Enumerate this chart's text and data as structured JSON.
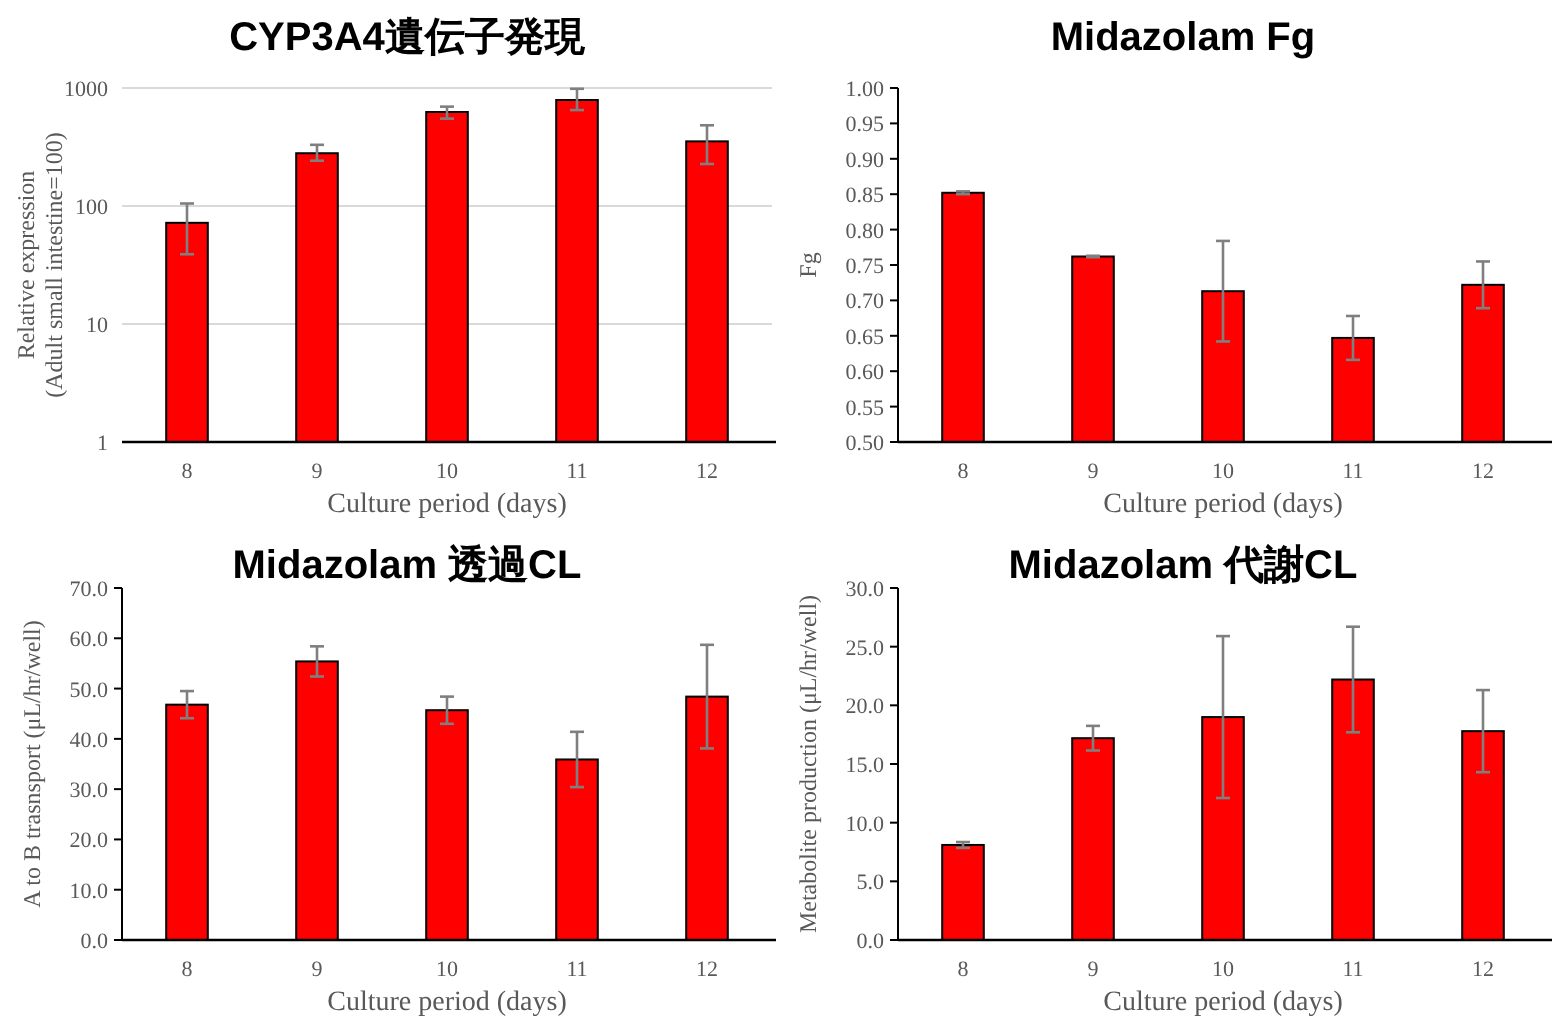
{
  "chart_data": [
    {
      "type": "bar",
      "title": "CYP3A4遺伝子発現",
      "xlabel": "Culture period (days)",
      "ylabel": "Relative expression\n(Adult small intestine=100)",
      "categories": [
        "8",
        "9",
        "10",
        "11",
        "12"
      ],
      "values": [
        72,
        280,
        626,
        791,
        353
      ],
      "errors": [
        [
          39,
          105
        ],
        [
          242,
          330
        ],
        [
          550,
          695
        ],
        [
          650,
          985
        ],
        [
          227,
          483
        ]
      ],
      "color": "#ff0000",
      "log": "y",
      "ylim": [
        1,
        1000
      ],
      "yticks": [
        1,
        10,
        100,
        1000
      ],
      "grid": "y"
    },
    {
      "type": "bar",
      "title": "Midazolam Fg",
      "xlabel": "Culture period (days)",
      "ylabel": "Fg",
      "categories": [
        "8",
        "9",
        "10",
        "11",
        "12"
      ],
      "values": [
        0.852,
        0.762,
        0.713,
        0.647,
        0.722
      ],
      "errors": [
        0.002,
        0.001,
        0.071,
        0.031,
        0.033
      ],
      "color": "#ff0000",
      "ylim": [
        0.5,
        1.0
      ],
      "yticks": [
        {
          "value": 0.5,
          "label": "0.50"
        },
        {
          "value": 0.55,
          "label": "0.55"
        },
        {
          "value": 0.6,
          "label": "0.60"
        },
        {
          "value": 0.65,
          "label": "0.65"
        },
        {
          "value": 0.7,
          "label": "0.70"
        },
        {
          "value": 0.75,
          "label": "0.75"
        },
        {
          "value": 0.8,
          "label": "0.80"
        },
        {
          "value": 0.85,
          "label": "0.85"
        },
        {
          "value": 0.9,
          "label": "0.90"
        },
        {
          "value": 0.95,
          "label": "0.95"
        },
        {
          "value": 1.0,
          "label": "1.00"
        }
      ]
    },
    {
      "type": "bar",
      "title": "Midazolam 透過CL",
      "xlabel": "Culture period (days)",
      "ylabel": "A to B trasnsport (μL/hr/well)",
      "categories": [
        "8",
        "9",
        "10",
        "11",
        "12"
      ],
      "values": [
        46.8,
        55.4,
        45.7,
        35.9,
        48.4
      ],
      "errors": [
        2.7,
        3.0,
        2.7,
        5.5,
        10.3
      ],
      "color": "#ff0000",
      "ylim": [
        0,
        70
      ],
      "yticks": [
        {
          "value": 0,
          "label": "0.0"
        },
        {
          "value": 10,
          "label": "10.0"
        },
        {
          "value": 20,
          "label": "20.0"
        },
        {
          "value": 30,
          "label": "30.0"
        },
        {
          "value": 40,
          "label": "40.0"
        },
        {
          "value": 50,
          "label": "50.0"
        },
        {
          "value": 60,
          "label": "60.0"
        },
        {
          "value": 70,
          "label": "70.0"
        }
      ]
    },
    {
      "type": "bar",
      "title": "Midazolam 代謝CL",
      "xlabel": "Culture period (days)",
      "ylabel": "Metabolite production (μL/hr/well)",
      "categories": [
        "8",
        "9",
        "10",
        "11",
        "12"
      ],
      "values": [
        8.1,
        17.2,
        19.0,
        22.2,
        17.8
      ],
      "errors": [
        0.25,
        1.05,
        6.9,
        4.5,
        3.5
      ],
      "color": "#ff0000",
      "ylim": [
        0,
        30
      ],
      "yticks": [
        {
          "value": 0,
          "label": "0.0"
        },
        {
          "value": 5,
          "label": "5.0"
        },
        {
          "value": 10,
          "label": "10.0"
        },
        {
          "value": 15,
          "label": "15.0"
        },
        {
          "value": 20,
          "label": "20.0"
        },
        {
          "value": 25,
          "label": "25.0"
        },
        {
          "value": 30,
          "label": "30.0"
        }
      ]
    }
  ]
}
